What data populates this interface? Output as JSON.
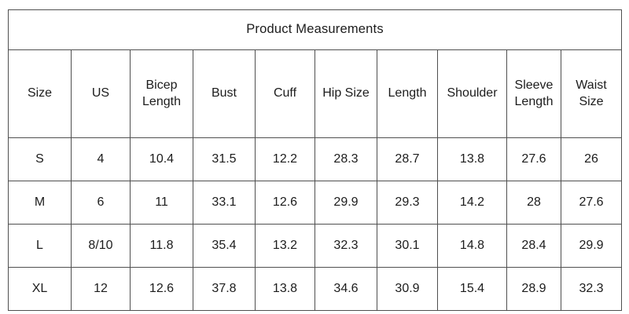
{
  "chart_data": {
    "type": "table",
    "title": "Product Measurements",
    "columns": [
      "Size",
      "US",
      "Bicep Length",
      "Bust",
      "Cuff",
      "Hip Size",
      "Length",
      "Shoulder",
      "Sleeve Length",
      "Waist Size"
    ],
    "rows": [
      [
        "S",
        "4",
        "10.4",
        "31.5",
        "12.2",
        "28.3",
        "28.7",
        "13.8",
        "27.6",
        "26"
      ],
      [
        "M",
        "6",
        "11",
        "33.1",
        "12.6",
        "29.9",
        "29.3",
        "14.2",
        "28",
        "27.6"
      ],
      [
        "L",
        "8/10",
        "11.8",
        "35.4",
        "13.2",
        "32.3",
        "30.1",
        "14.8",
        "28.4",
        "29.9"
      ],
      [
        "XL",
        "12",
        "12.6",
        "37.8",
        "13.8",
        "34.6",
        "30.9",
        "15.4",
        "28.9",
        "32.3"
      ]
    ],
    "layout": {
      "legend": "none",
      "grid": "full-borders"
    },
    "colors": {
      "border": "#4f4f4f",
      "text": "#1c1c1c",
      "background": "#ffffff"
    }
  }
}
